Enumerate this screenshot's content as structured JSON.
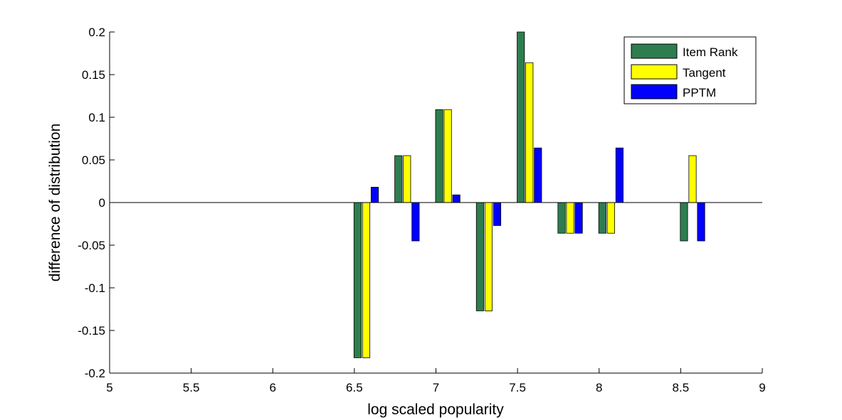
{
  "chart_data": {
    "type": "bar",
    "title": "",
    "xlabel": "log scaled popularity",
    "ylabel": "difference of distribution",
    "xlim": [
      5,
      9
    ],
    "ylim": [
      -0.2,
      0.2
    ],
    "xticks": [
      5,
      5.5,
      6,
      6.5,
      7,
      7.5,
      8,
      8.5,
      9
    ],
    "xtick_labels": [
      "5",
      "5.5",
      "6",
      "6.5",
      "7",
      "7.5",
      "8",
      "8.5",
      "9"
    ],
    "yticks": [
      0.2,
      0.15,
      0.1,
      0.05,
      0,
      -0.05,
      -0.1,
      -0.15,
      -0.2
    ],
    "ytick_labels": [
      "0.2",
      "0.15",
      "0.1",
      "0.05",
      "0",
      "-0.05",
      "-0.1",
      "-0.15",
      "-0.2"
    ],
    "grid": false,
    "legend_position": "top-right",
    "x": [
      6.625,
      6.875,
      7.125,
      7.375,
      7.625,
      7.875,
      8.125,
      8.625
    ],
    "series": [
      {
        "name": "Item Rank",
        "color": "#2e7d4f",
        "values": [
          -0.182,
          0.055,
          0.109,
          -0.127,
          0.2,
          -0.036,
          -0.036,
          -0.045
        ]
      },
      {
        "name": "Tangent",
        "color": "#ffff00",
        "values": [
          -0.182,
          0.055,
          0.109,
          -0.127,
          0.164,
          -0.036,
          -0.036,
          0.055
        ]
      },
      {
        "name": "PPTM",
        "color": "#0000ff",
        "values": [
          0.018,
          -0.045,
          0.009,
          -0.027,
          0.064,
          -0.036,
          0.064,
          -0.045
        ]
      }
    ]
  }
}
